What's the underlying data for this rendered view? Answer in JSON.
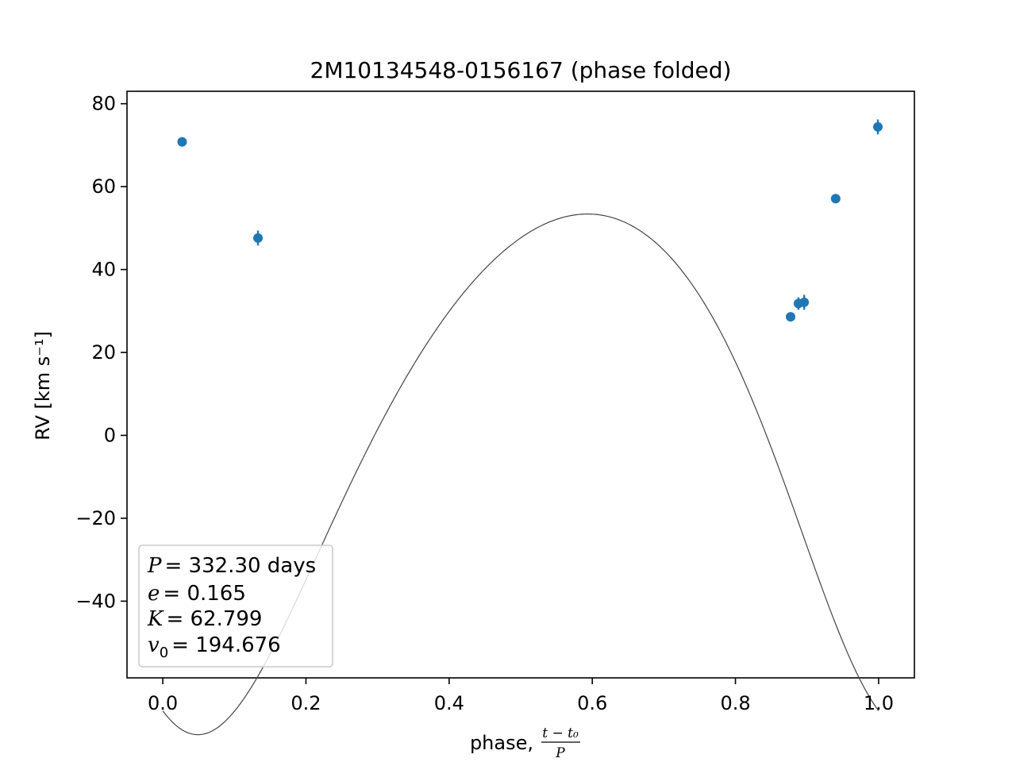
{
  "chart_data": {
    "type": "scatter",
    "title": "2M10134548-0156167 (phase folded)",
    "xlabel": "phase,",
    "xlabel_fraction": {
      "numerator": "t − t₀",
      "denominator": "P"
    },
    "ylabel": "RV [km s⁻¹]",
    "xlim": [
      -0.05,
      1.05
    ],
    "ylim": [
      -58.5,
      83
    ],
    "xticks": [
      0.0,
      0.2,
      0.4,
      0.6,
      0.8,
      1.0
    ],
    "xtick_labels": [
      "0.0",
      "0.2",
      "0.4",
      "0.6",
      "0.8",
      "1.0"
    ],
    "yticks": [
      -40,
      -20,
      0,
      20,
      40,
      60,
      80
    ],
    "ytick_labels": [
      "−40",
      "−20",
      "0",
      "20",
      "40",
      "60",
      "80"
    ],
    "grid": false,
    "series": [
      {
        "kind": "errorbar-points",
        "color": "#1f77b4",
        "points": [
          {
            "x": 0.027,
            "y": 70.8,
            "yerr": 0.6
          },
          {
            "x": 0.133,
            "y": 47.6,
            "yerr": 1.8
          },
          {
            "x": 0.877,
            "y": 28.6,
            "yerr": 0.5
          },
          {
            "x": 0.888,
            "y": 31.8,
            "yerr": 1.5
          },
          {
            "x": 0.896,
            "y": 32.1,
            "yerr": 1.8
          },
          {
            "x": 0.94,
            "y": 57.1,
            "yerr": 0.6
          },
          {
            "x": 0.999,
            "y": 74.4,
            "yerr": 1.8
          }
        ]
      },
      {
        "kind": "model-curve",
        "color": "#444444",
        "period_days": 332.3,
        "e": 0.165,
        "K": 62.799,
        "v0": 194.676,
        "phase_offset": 0.0,
        "omega_rad": 2.71,
        "t_peri_phase": 0.0,
        "rv_offset_plotted": 0.0
      }
    ],
    "legend_box": {
      "placement": "lower-left",
      "lines": [
        {
          "sym": "P",
          "sub": "",
          "eq": "= 332.30 days"
        },
        {
          "sym": "e",
          "sub": "",
          "eq": "= 0.165"
        },
        {
          "sym": "K",
          "sub": "",
          "eq": "= 62.799"
        },
        {
          "sym": "v",
          "sub": "0",
          "eq": "= 194.676"
        }
      ]
    }
  }
}
